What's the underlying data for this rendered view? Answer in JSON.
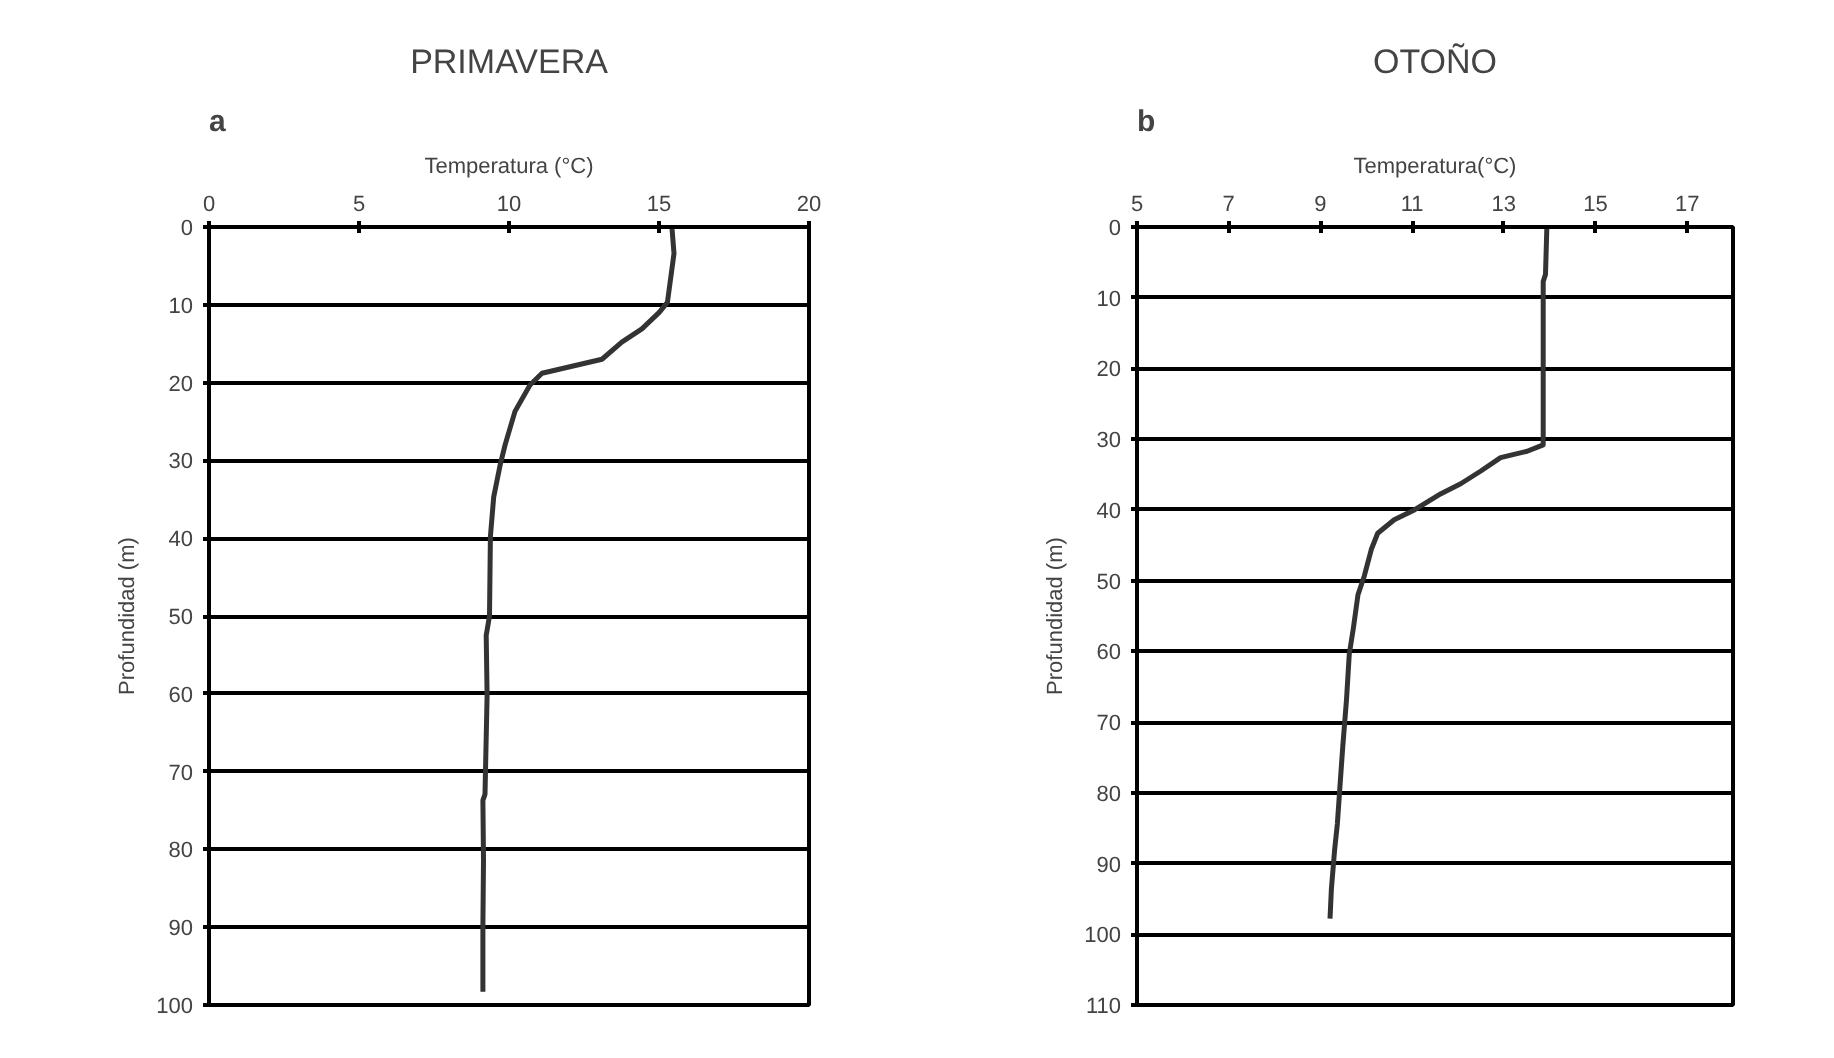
{
  "chart_data": [
    {
      "type": "line",
      "title": "PRIMAVERA",
      "xlabel": "Temperatura (°C)",
      "ylabel": "Profundidad (m)",
      "annotations": [
        "a"
      ],
      "series": [
        {
          "color": "#333333",
          "x": [
            15.43,
            15.5,
            15.28,
            15.0,
            14.43,
            13.76,
            13.1,
            11.1,
            10.7,
            10.2,
            9.87,
            9.71,
            9.49,
            9.38,
            9.35,
            9.24,
            9.27,
            9.2,
            9.13,
            9.15,
            9.13,
            9.13
          ],
          "values": [
            0,
            3.4,
            9.7,
            11,
            13.1,
            14.8,
            17,
            18.8,
            20.3,
            23.7,
            28,
            30.5,
            34.7,
            39.8,
            50,
            52.5,
            60.2,
            72.9,
            73.7,
            81.4,
            89.8,
            98.3
          ]
        }
      ],
      "xlim": [
        0,
        20
      ],
      "xticks": [
        0,
        5,
        10,
        15,
        20
      ],
      "ylim": [
        100,
        0
      ],
      "yticks": [
        0,
        10,
        20,
        30,
        40,
        50,
        60,
        70,
        80,
        90,
        100
      ],
      "grid": "y",
      "marker": "none",
      "line_style": "solid"
    },
    {
      "type": "line",
      "title": "OTOÑO",
      "xlabel": "Temperatura(°C)",
      "ylabel": "Profundidad (m)",
      "annotations": [
        "b"
      ],
      "series": [
        {
          "color": "#333333",
          "x": [
            13.94,
            13.91,
            13.86,
            13.86,
            13.51,
            12.93,
            12.5,
            12.06,
            11.63,
            11.05,
            10.61,
            10.25,
            10.11,
            9.96,
            9.82,
            9.72,
            9.63,
            9.57,
            9.49,
            9.43,
            9.37,
            9.31,
            9.24,
            9.21
          ],
          "values": [
            0,
            6.7,
            7.7,
            30.8,
            31.7,
            32.6,
            34.5,
            36.3,
            37.7,
            40,
            41.4,
            43.3,
            45.6,
            49.3,
            52,
            56.7,
            60.4,
            66.8,
            73.3,
            78.8,
            84.4,
            88.1,
            93.6,
            97.8
          ]
        }
      ],
      "xlim": [
        5,
        18
      ],
      "xticks": [
        5,
        7,
        9,
        11,
        13,
        15,
        17
      ],
      "ylim": [
        110,
        0
      ],
      "yticks": [
        0,
        10,
        20,
        30,
        40,
        50,
        60,
        70,
        80,
        90,
        100,
        110
      ],
      "grid": "y",
      "marker": "none",
      "line_style": "solid"
    }
  ]
}
